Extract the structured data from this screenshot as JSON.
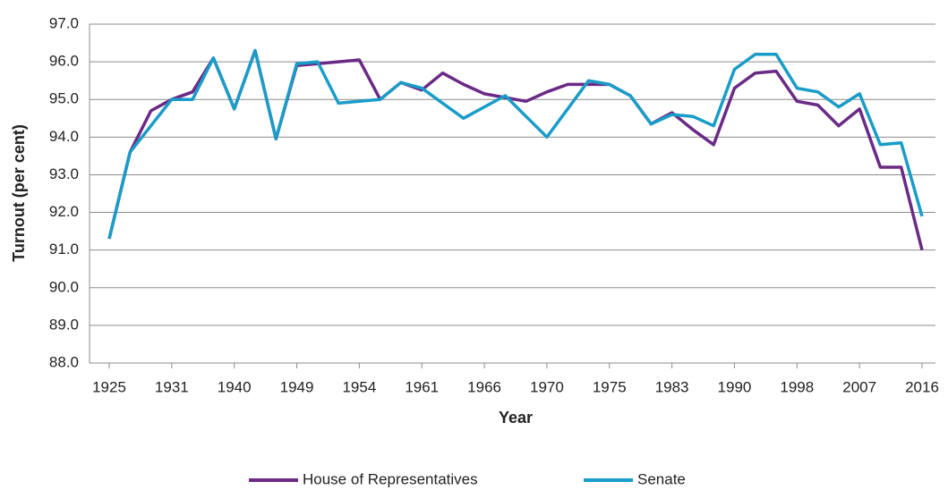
{
  "chart_data": {
    "type": "line",
    "y_label": "Turnout (per cent)",
    "x_label": "Year",
    "categories": [
      "1925",
      null,
      null,
      "1931",
      null,
      null,
      "1940",
      null,
      null,
      "1949",
      null,
      null,
      "1954",
      null,
      null,
      "1961",
      null,
      null,
      "1966",
      null,
      null,
      "1970",
      null,
      null,
      "1975",
      null,
      null,
      "1983",
      null,
      null,
      "1990",
      null,
      null,
      "1998",
      null,
      null,
      "2007",
      null,
      null,
      "2016"
    ],
    "series": [
      {
        "name": "House of Representatives",
        "color": "#6a2a86",
        "values": [
          91.3,
          93.6,
          94.7,
          95.0,
          95.2,
          96.1,
          94.75,
          96.3,
          93.95,
          95.9,
          95.95,
          96.0,
          96.05,
          95.0,
          95.45,
          95.25,
          95.7,
          95.4,
          95.15,
          95.05,
          94.95,
          95.2,
          95.4,
          95.4,
          95.4,
          95.1,
          94.35,
          94.65,
          94.2,
          93.8,
          95.3,
          95.7,
          95.75,
          94.95,
          94.85,
          94.3,
          94.75,
          93.2,
          93.2,
          91.0
        ]
      },
      {
        "name": "Senate",
        "color": "#1a9cc9",
        "values": [
          91.3,
          93.6,
          94.3,
          95.0,
          95.0,
          96.1,
          94.75,
          96.3,
          93.95,
          95.95,
          96.0,
          94.9,
          94.95,
          95.0,
          95.45,
          95.3,
          94.9,
          94.5,
          94.8,
          95.1,
          94.55,
          94.0,
          94.75,
          95.5,
          95.4,
          95.1,
          94.35,
          94.6,
          94.55,
          94.3,
          95.8,
          96.2,
          96.2,
          95.3,
          95.2,
          94.8,
          95.15,
          93.8,
          93.85,
          91.9
        ]
      }
    ],
    "ylim": [
      88,
      97
    ],
    "yticks": [
      {
        "value": 88,
        "label": "88.0"
      },
      {
        "value": 89,
        "label": "89.0"
      },
      {
        "value": 90,
        "label": "90.0"
      },
      {
        "value": 91,
        "label": "91.0"
      },
      {
        "value": 92,
        "label": "92.0"
      },
      {
        "value": 93,
        "label": "93.0"
      },
      {
        "value": 94,
        "label": "94.0"
      },
      {
        "value": 95,
        "label": "95.0"
      },
      {
        "value": 96,
        "label": "96.0"
      },
      {
        "value": 97,
        "label": "97.0"
      }
    ],
    "grid": true,
    "legend": "bottom"
  }
}
